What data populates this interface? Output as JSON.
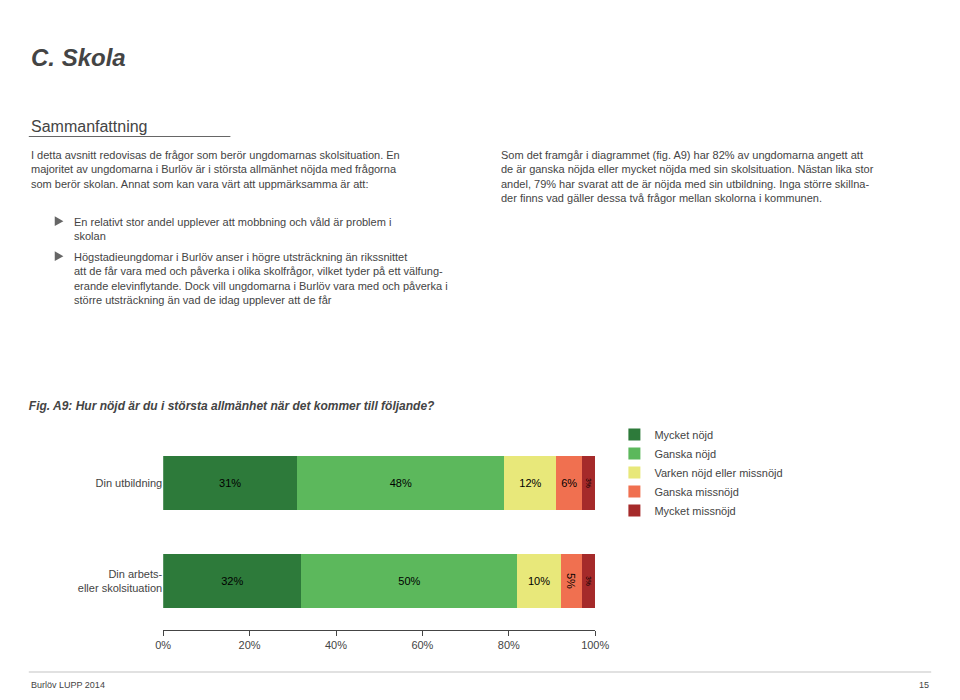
{
  "chart_data": {
    "type": "bar",
    "orientation": "horizontal",
    "stacked": true,
    "title": "Fig. A9: Hur nöjd är du i största allmänhet när det kommer till följande?",
    "categories": [
      "Din utbildning",
      "Din arbets-\neller skolsituation"
    ],
    "series": [
      {
        "name": "Mycket nöjd",
        "color": "#2d7a3a",
        "values": [
          31,
          32
        ],
        "value_labels": [
          "31%",
          "32%"
        ]
      },
      {
        "name": "Ganska nöjd",
        "color": "#5cb85c",
        "values": [
          48,
          50
        ],
        "value_labels": [
          "48%",
          "50%"
        ]
      },
      {
        "name": "Varken nöjd eller missnöjd",
        "color": "#e8e87a",
        "values": [
          12,
          10
        ],
        "value_labels": [
          "12%",
          "10%"
        ]
      },
      {
        "name": "Ganska missnöjd",
        "color": "#f07050",
        "values": [
          6,
          5
        ],
        "value_labels": [
          "6%",
          "5%"
        ]
      },
      {
        "name": "Mycket missnöjd",
        "color": "#a52a2a",
        "values": [
          3,
          3
        ],
        "value_labels": [
          "3%",
          "3%"
        ]
      }
    ],
    "data_labels": true,
    "xlim": [
      0,
      100
    ],
    "xticks": [
      {
        "value": 0,
        "label": "0%"
      },
      {
        "value": 20,
        "label": "20%"
      },
      {
        "value": 40,
        "label": "40%"
      },
      {
        "value": 60,
        "label": "60%"
      },
      {
        "value": 80,
        "label": "80%"
      },
      {
        "value": 100,
        "label": "100%"
      }
    ],
    "grid": false,
    "legend": "right",
    "annotations": [
      "C. Skola",
      "Sammanfattning",
      "I detta avsnitt redovisas de frågor som berör ungdomarnas skolsituation. En\nmajoritet av ungdomarna i Burlöv är i största allmänhet nöjda med frågorna\nsom berör skolan. Annat som kan vara värt att uppmärksamma är att:",
      "En relativt stor andel upplever att mobbning och våld är problem i\nskolan",
      "Högstadieungdomar i Burlöv anser i högre utsträckning än rikssnittet\natt de får vara med och påverka i olika skolfrågor, vilket tyder på ett välfung-\nerande elevinflytande. Dock vill ungdomarna i Burlöv vara med och påverka i\nstörre utsträckning än vad de idag upplever att de får",
      "Som det framgår i diagrammet (fig. A9) har 82% av ungdomarna angett att\nde är ganska nöjda eller mycket nöjda med sin skolsituation. Nästan lika stor\nandel, 79% har svarat att de är nöjda med sin utbildning. Inga större skillna-\nder finns vad gäller dessa två frågor mellan skolorna i kommunen.",
      "Burlöv LUPP 2014",
      "15"
    ]
  }
}
